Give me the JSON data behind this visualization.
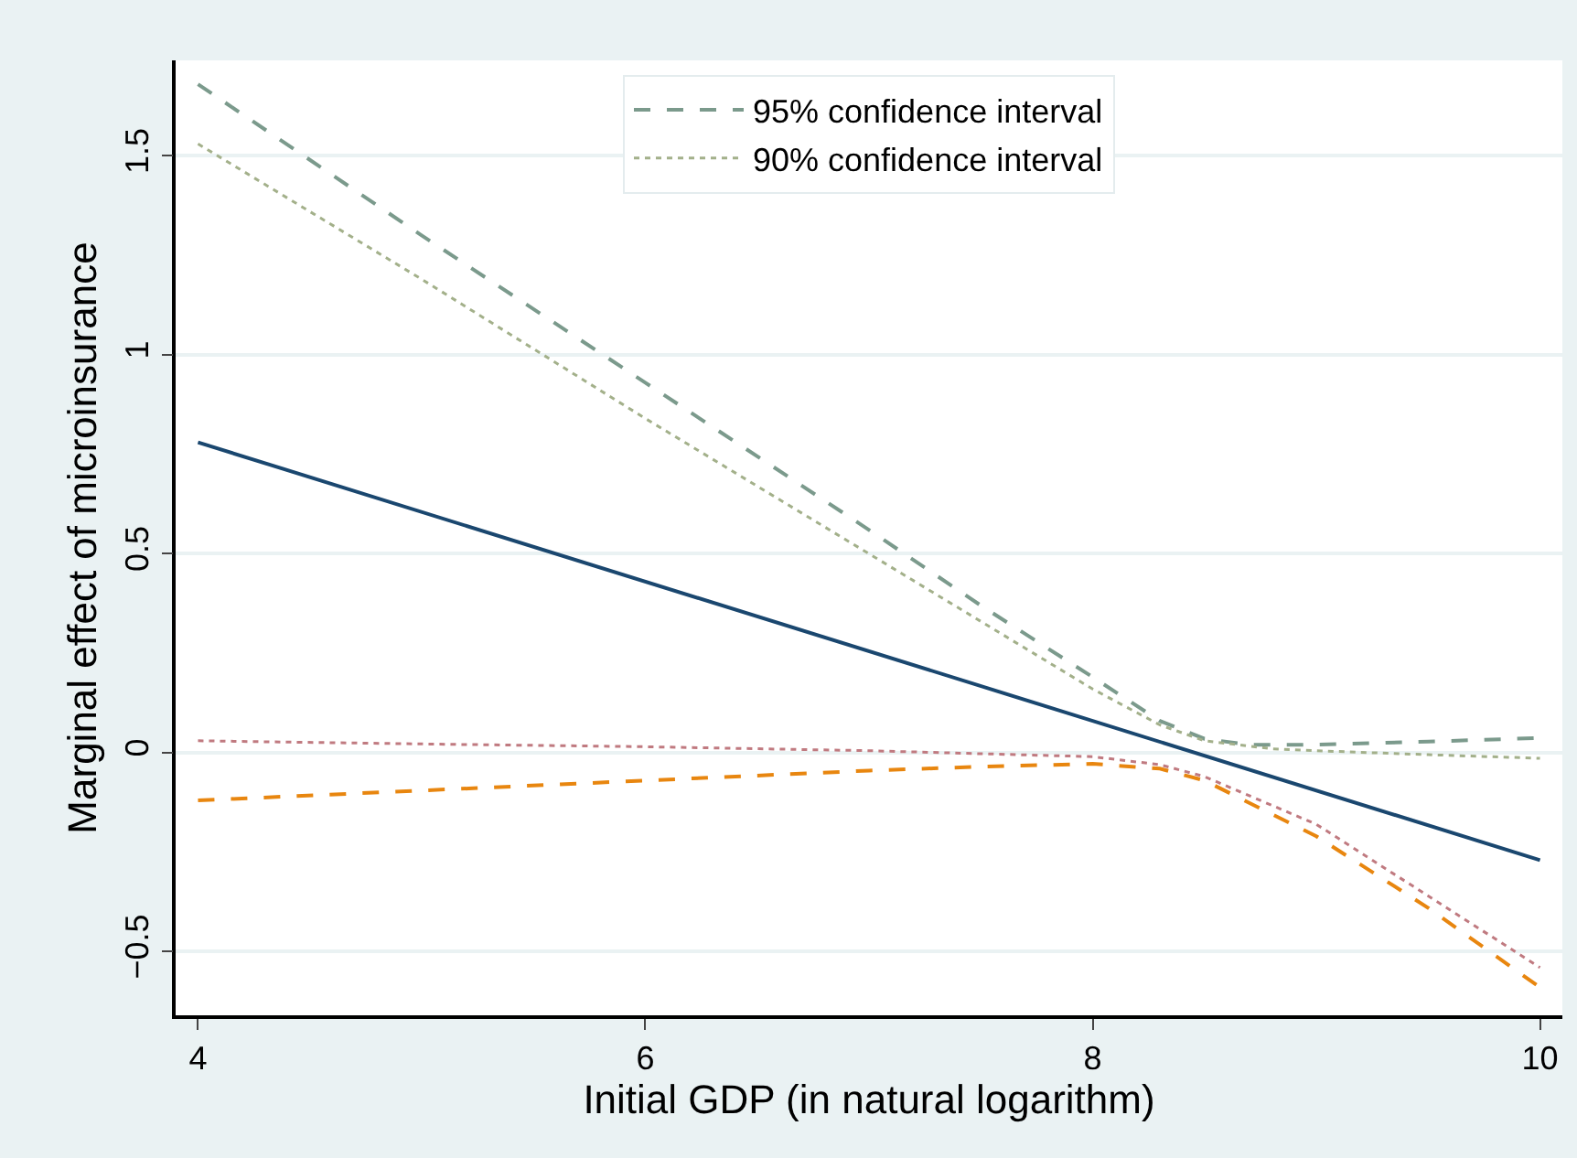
{
  "chart_data": {
    "type": "line",
    "xlabel": "Initial GDP (in natural logarithm)",
    "ylabel": "Marginal effect of microinsurance",
    "xlim": [
      3.9,
      10.1
    ],
    "xticks": [
      4,
      6,
      8,
      10
    ],
    "ylim": [
      -0.66,
      1.74
    ],
    "yticks": [
      -0.5,
      0,
      0.5,
      1,
      1.5
    ],
    "grid": "y",
    "legend": "top",
    "marker": "none",
    "series": [
      {
        "color": "#1a476f",
        "line_style": "solid",
        "x": [
          4,
          10
        ],
        "values": [
          0.78,
          -0.27
        ]
      },
      {
        "name": "95% confidence interval",
        "color": "#7b9a8c",
        "line_style": "dashed",
        "x": [
          4,
          5,
          6,
          7,
          7.5,
          8,
          8.3,
          8.5,
          8.7,
          9,
          9.5,
          10
        ],
        "values": [
          1.68,
          1.3,
          0.93,
          0.56,
          0.37,
          0.19,
          0.08,
          0.035,
          0.02,
          0.02,
          0.028,
          0.037
        ]
      },
      {
        "color": "#e8860f",
        "line_style": "dashed",
        "x": [
          4,
          5,
          6,
          7,
          7.5,
          8,
          8.3,
          8.5,
          9,
          9.5,
          10
        ],
        "values": [
          -0.12,
          -0.095,
          -0.07,
          -0.045,
          -0.035,
          -0.028,
          -0.04,
          -0.07,
          -0.21,
          -0.39,
          -0.59
        ]
      },
      {
        "name": "90% confidence interval",
        "color": "#a3b08a",
        "line_style": "dotted",
        "x": [
          4,
          5,
          6,
          7,
          7.5,
          8,
          8.3,
          8.5,
          8.8,
          9,
          9.5,
          10
        ],
        "values": [
          1.53,
          1.19,
          0.84,
          0.5,
          0.33,
          0.16,
          0.07,
          0.03,
          0.01,
          0.005,
          -0.005,
          -0.014
        ]
      },
      {
        "color": "#c07a80",
        "line_style": "dotted",
        "x": [
          4,
          5,
          6,
          7,
          8,
          8.3,
          8.5,
          9,
          9.5,
          10
        ],
        "values": [
          0.03,
          0.022,
          0.015,
          0.005,
          -0.01,
          -0.03,
          -0.06,
          -0.18,
          -0.36,
          -0.54
        ]
      }
    ]
  }
}
